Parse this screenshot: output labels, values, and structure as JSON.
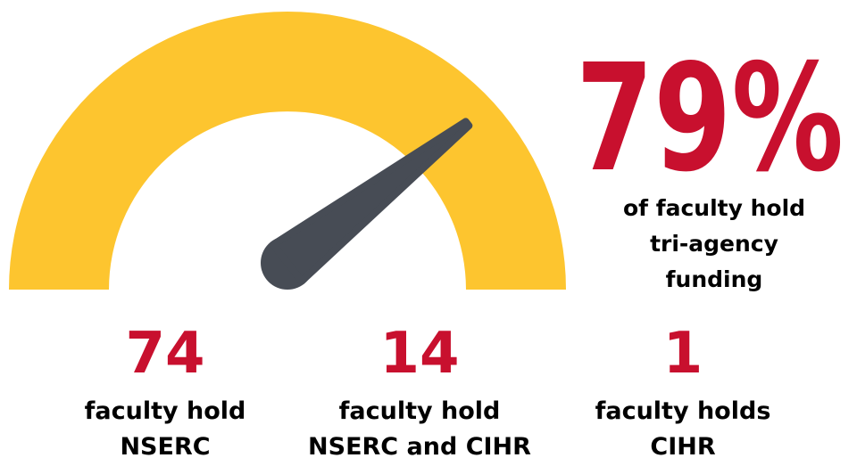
{
  "chart_data": {
    "type": "gauge",
    "value": 79,
    "value_label": "79%",
    "ylim": [
      0,
      100
    ],
    "caption": [
      "of faculty hold",
      "tri-agency",
      "funding"
    ],
    "colors": {
      "arc": "#FDC52F",
      "needle": "#474C55",
      "text": "#C8102E"
    }
  },
  "stats": [
    {
      "value": 74,
      "label": [
        "faculty hold",
        "NSERC"
      ]
    },
    {
      "value": 14,
      "label": [
        "faculty hold",
        "NSERC and CIHR"
      ]
    },
    {
      "value": 1,
      "label": [
        "faculty holds",
        "CIHR"
      ]
    }
  ]
}
